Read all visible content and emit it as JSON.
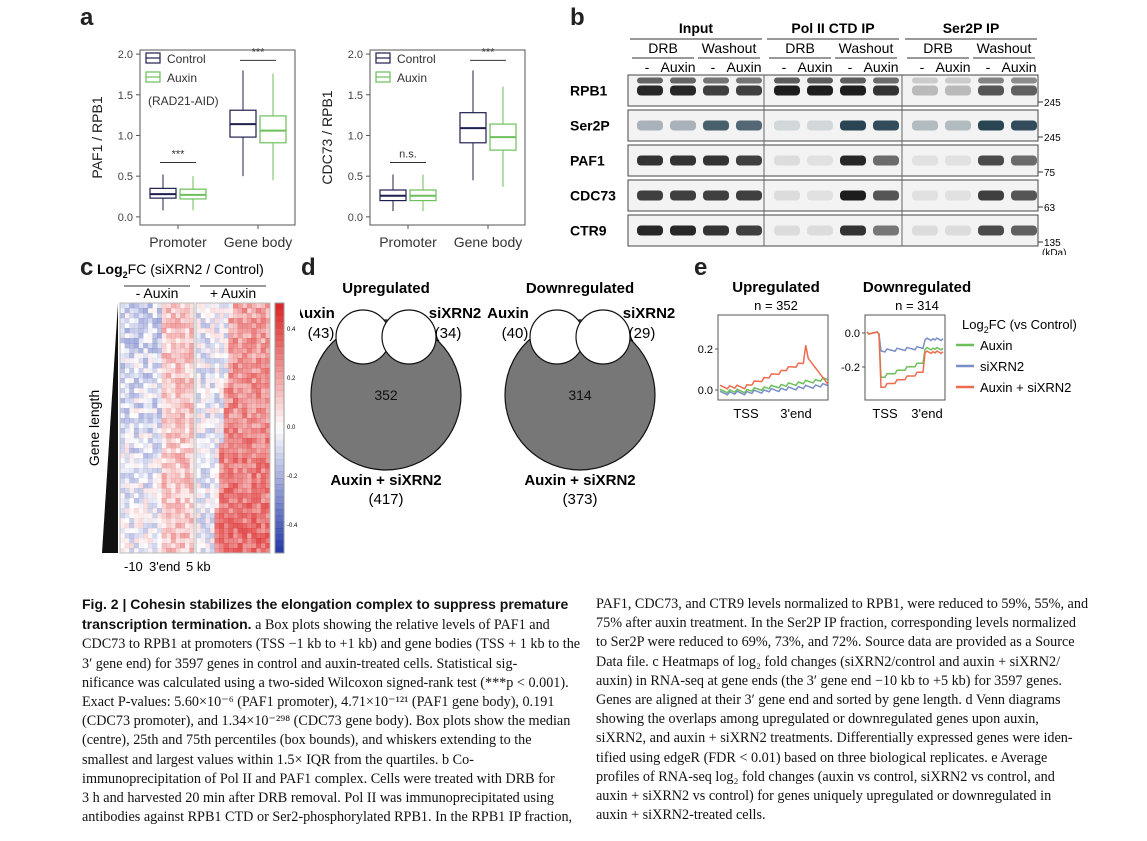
{
  "panels": {
    "a": "a",
    "b": "b",
    "c": "c",
    "d": "d",
    "e": "e"
  },
  "a": {
    "left": {
      "ylabel": "PAF1 / RPB1",
      "yticks": [
        "0.0",
        "0.5",
        "1.0",
        "1.5",
        "2.0"
      ],
      "groups": [
        "Promoter",
        "Gene body"
      ],
      "legend": [
        "Control",
        "Auxin"
      ],
      "note": "(RAD21-AID)",
      "sig": [
        "***",
        "***"
      ]
    },
    "right": {
      "ylabel": "CDC73 / RPB1",
      "yticks": [
        "0.0",
        "0.5",
        "1.0",
        "1.5",
        "2.0"
      ],
      "groups": [
        "Promoter",
        "Gene body"
      ],
      "legend": [
        "Control",
        "Auxin"
      ],
      "sig": [
        "n.s.",
        "***"
      ]
    },
    "boxes": {
      "left": [
        {
          "group": "Promoter",
          "series": "Control",
          "q1": 0.23,
          "median": 0.28,
          "q3": 0.35,
          "low": 0.08,
          "high": 0.52
        },
        {
          "group": "Promoter",
          "series": "Auxin",
          "q1": 0.22,
          "median": 0.27,
          "q3": 0.34,
          "low": 0.08,
          "high": 0.5
        },
        {
          "group": "Gene body",
          "series": "Control",
          "q1": 0.98,
          "median": 1.14,
          "q3": 1.31,
          "low": 0.5,
          "high": 1.8
        },
        {
          "group": "Gene body",
          "series": "Auxin",
          "q1": 0.91,
          "median": 1.06,
          "q3": 1.24,
          "low": 0.45,
          "high": 1.76
        }
      ],
      "right": [
        {
          "group": "Promoter",
          "series": "Control",
          "q1": 0.2,
          "median": 0.26,
          "q3": 0.33,
          "low": 0.07,
          "high": 0.52
        },
        {
          "group": "Promoter",
          "series": "Auxin",
          "q1": 0.2,
          "median": 0.26,
          "q3": 0.33,
          "low": 0.07,
          "high": 0.52
        },
        {
          "group": "Gene body",
          "series": "Control",
          "q1": 0.91,
          "median": 1.09,
          "q3": 1.28,
          "low": 0.45,
          "high": 1.8
        },
        {
          "group": "Gene body",
          "series": "Auxin",
          "q1": 0.82,
          "median": 0.98,
          "q3": 1.14,
          "low": 0.37,
          "high": 1.6
        }
      ]
    }
  },
  "b": {
    "headers": [
      "Input",
      "Pol II CTD IP",
      "Ser2P IP"
    ],
    "subheaders": [
      "DRB",
      "Washout"
    ],
    "lanes": [
      "-",
      "Auxin"
    ],
    "rows": [
      "RPB1",
      "Ser2P",
      "PAF1",
      "CDC73",
      "CTR9"
    ],
    "markers": [
      "245",
      "245",
      "75",
      "63",
      "135"
    ],
    "unit": "(kDa)"
  },
  "c": {
    "title": "Log",
    "title_sub": "2",
    "title_rest": "FC (siXRN2 / Control)",
    "cols": [
      "- Auxin",
      "+ Auxin"
    ],
    "ylabel": "Gene length",
    "xticks": [
      "-10",
      "3'end",
      "5 kb"
    ],
    "scale": [
      "0.4",
      "0.2",
      "0.0",
      "-0.2",
      "-0.4"
    ]
  },
  "d": {
    "venns": [
      {
        "title": "Upregulated",
        "a": "Auxin",
        "a_n": "(43)",
        "b": "siXRN2",
        "b_n": "(34)",
        "center": "352",
        "c": "Auxin + siXRN2",
        "c_n": "(417)"
      },
      {
        "title": "Downregulated",
        "a": "Auxin",
        "a_n": "(40)",
        "b": "siXRN2",
        "b_n": "(29)",
        "center": "314",
        "c": "Auxin + siXRN2",
        "c_n": "(373)"
      }
    ]
  },
  "e": {
    "plots": [
      {
        "title": "Upregulated",
        "n": "n = 352",
        "yticks": [
          "0.2",
          "0.0"
        ],
        "xticks": [
          "TSS",
          "3'end"
        ]
      },
      {
        "title": "Downregulated",
        "n": "n = 314",
        "yticks": [
          "0.0",
          "-0.2"
        ],
        "xticks": [
          "TSS",
          "3'end"
        ]
      }
    ],
    "legend_title": "Log",
    "legend_sub": "2",
    "legend_rest": "FC (vs Control)",
    "legend": [
      "Auxin",
      "siXRN2",
      "Auxin + siXRN2"
    ]
  },
  "caption": {
    "left": [
      {
        "b": "Fig. 2 | Cohesin stabilizes the elongation complex to suppress premature"
      },
      {
        "b": "transcription termination.",
        " ": " a Box plots showing the relative levels of PAF1 and"
      },
      {
        "t": "CDC73 to RPB1 at promoters (TSS −1 kb to +1 kb) and gene bodies (TSS + 1 kb to the"
      },
      {
        "t": "3′ gene end) for 3597 genes in control and auxin-treated cells. Statistical sig-"
      },
      {
        "t": "nificance was calculated using a two-sided Wilcoxon signed-rank test (***p < 0.001)."
      },
      {
        "t": "Exact P-values: 5.60×10⁻⁶ (PAF1 promoter), 4.71×10⁻¹²¹ (PAF1 gene body), 0.191"
      },
      {
        "t": "(CDC73 promoter), and 1.34×10⁻²⁹⁸ (CDC73 gene body). Box plots show the median"
      },
      {
        "t": "(centre), 25th and 75th percentiles (box bounds), and whiskers extending to the"
      },
      {
        "t": "smallest and largest values within 1.5× IQR from the quartiles. b Co-"
      },
      {
        "t": "immunoprecipitation of Pol II and PAF1 complex. Cells were treated with DRB for"
      },
      {
        "t": "3 h and harvested 20 min after DRB removal. Pol II was immunoprecipitated using"
      },
      {
        "t": "antibodies against RPB1 CTD or Ser2-phosphorylated RPB1. In the RPB1 IP fraction,"
      }
    ],
    "right": [
      "PAF1, CDC73, and CTR9 levels normalized to RPB1, were reduced to 59%, 55%, and",
      "75% after auxin treatment. In the Ser2P IP fraction, corresponding levels normalized",
      "to Ser2P were reduced to 69%, 73%, and 72%. Source data are provided as a Source",
      "Data file. c Heatmaps of log₂ fold changes (siXRN2/control and auxin + siXRN2/",
      "auxin) in RNA-seq at gene ends (the 3′ gene end −10 kb to +5 kb) for 3597 genes.",
      "Genes are aligned at their 3′ gene end and sorted by gene length. d Venn diagrams",
      "showing the overlaps among upregulated or downregulated genes upon auxin,",
      "siXRN2, and auxin + siXRN2 treatments. Differentially expressed genes were iden-",
      "tified using edgeR (FDR < 0.01) based on three biological replicates. e Average",
      "profiles of RNA-seq log₂ fold changes (auxin vs control, siXRN2 vs control, and",
      "auxin + siXRN2 vs control) for genes uniquely upregulated or downregulated in",
      "auxin + siXRN2-treated cells."
    ]
  },
  "colors": {
    "control": "#1f1f4d",
    "auxin": "#6cbf5a",
    "sixrn2": "#7a8fc9",
    "combo": "#ef6b4f",
    "venn": "#777777"
  }
}
